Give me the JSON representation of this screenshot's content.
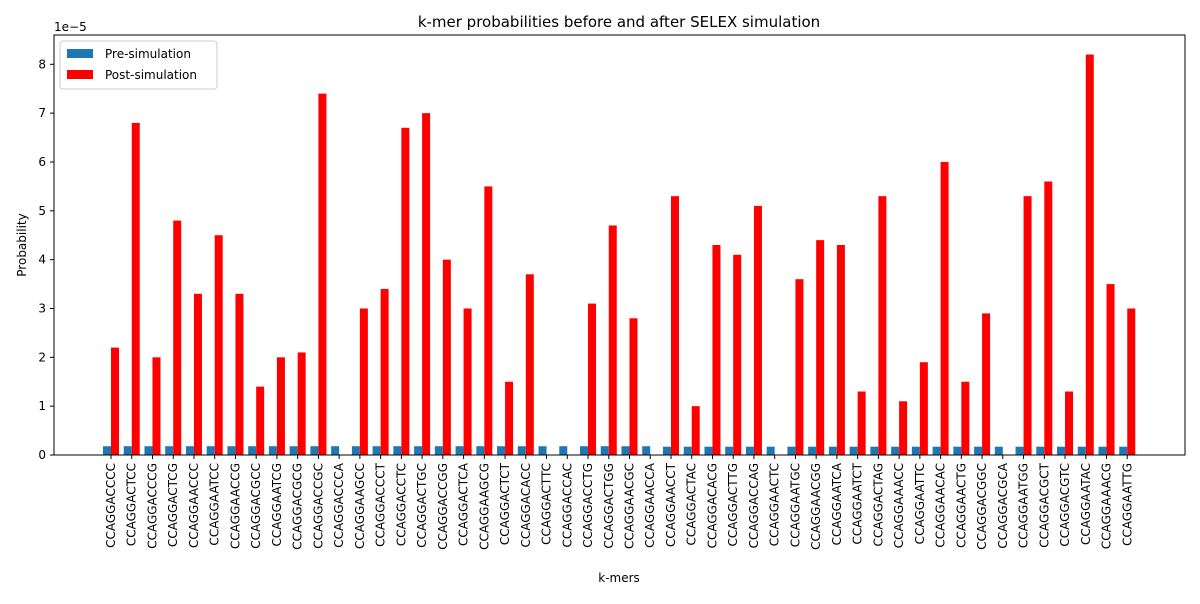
{
  "chart_data": {
    "type": "bar",
    "title": "k-mer probabilities before and after SELEX simulation",
    "xlabel": "k-mers",
    "ylabel": "Probability",
    "y_scale_label": "1e−5",
    "ylim": [
      0,
      8.6
    ],
    "y_ticks": [
      "0",
      "1",
      "2",
      "3",
      "4",
      "5",
      "6",
      "7",
      "8"
    ],
    "y_tick_values": [
      0,
      1,
      2,
      3,
      4,
      5,
      6,
      7,
      8
    ],
    "legend_position": "top-left",
    "grid": false,
    "categories": [
      "CCAGGACCCC",
      "CCAGGACTCC",
      "CCAGGACCCG",
      "CCAGGACTCG",
      "CCAGGAACCC",
      "CCAGGAATCC",
      "CCAGGAACCG",
      "CCAGGACGCC",
      "CCAGGAATCG",
      "CCAGGACGCG",
      "CCAGGACCGC",
      "CCAGGACCCA",
      "CCAGGAAGCC",
      "CCAGGACCCT",
      "CCAGGACCTC",
      "CCAGGACTGC",
      "CCAGGACCGG",
      "CCAGGACTCA",
      "CCAGGAAGCG",
      "CCAGGACTCT",
      "CCAGGACACC",
      "CCAGGACTTC",
      "CCAGGACCAC",
      "CCAGGACCTG",
      "CCAGGACTGG",
      "CCAGGAACGC",
      "CCAGGAACCA",
      "CCAGGAACCT",
      "CCAGGACTAC",
      "CCAGGACACG",
      "CCAGGACTTG",
      "CCAGGACCAG",
      "CCAGGAACTC",
      "CCAGGAATGC",
      "CCAGGAACGG",
      "CCAGGAATCA",
      "CCAGGAATCT",
      "CCAGGACTAG",
      "CCAGGAAACC",
      "CCAGGAATTC",
      "CCAGGAACAC",
      "CCAGGAACTG",
      "CCAGGACGGC",
      "CCAGGACGCA",
      "CCAGGAATGG",
      "CCAGGACGCT",
      "CCAGGACGTC",
      "CCAGGAATAC",
      "CCAGGAAACG",
      "CCAGGAATTG"
    ],
    "series": [
      {
        "name": "Pre-simulation",
        "color": "#1f77b4",
        "values": [
          0.18,
          0.18,
          0.18,
          0.18,
          0.18,
          0.18,
          0.18,
          0.18,
          0.18,
          0.18,
          0.18,
          0.18,
          0.18,
          0.18,
          0.18,
          0.18,
          0.18,
          0.18,
          0.18,
          0.18,
          0.18,
          0.18,
          0.18,
          0.18,
          0.18,
          0.18,
          0.18,
          0.17,
          0.17,
          0.17,
          0.17,
          0.17,
          0.17,
          0.17,
          0.17,
          0.17,
          0.17,
          0.17,
          0.17,
          0.17,
          0.17,
          0.17,
          0.17,
          0.17,
          0.17,
          0.17,
          0.17,
          0.17,
          0.17,
          0.17
        ]
      },
      {
        "name": "Post-simulation",
        "color": "#ff0000",
        "values": [
          2.2,
          6.8,
          2.0,
          4.8,
          3.3,
          4.5,
          3.3,
          1.4,
          2.0,
          2.1,
          7.4,
          0,
          3.0,
          3.4,
          6.7,
          7.0,
          4.0,
          3.0,
          5.5,
          1.5,
          3.7,
          0,
          0,
          3.1,
          4.7,
          2.8,
          0,
          5.3,
          1.0,
          4.3,
          4.1,
          5.1,
          0,
          3.6,
          4.4,
          4.3,
          1.3,
          5.3,
          1.1,
          1.9,
          6.0,
          1.5,
          2.9,
          0,
          5.3,
          5.6,
          1.3,
          8.2,
          3.5,
          3.0
        ]
      }
    ]
  }
}
